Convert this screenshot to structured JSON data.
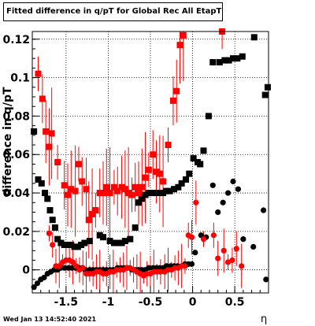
{
  "title": "Fitted difference in q/pT for Global Rec All EtapT",
  "footer": "Wed Jan 13 14:52:40 2021",
  "chart_data": {
    "type": "scatter",
    "title": "Fitted difference in q/pT for Global Rec All EtapT",
    "xlabel": "η",
    "ylabel": "difference in q/pT",
    "xlim": [
      -1.9,
      0.9
    ],
    "ylim": [
      -0.012,
      0.124
    ],
    "grid": true,
    "x_ticks": [
      -1.5,
      -1,
      -0.5,
      0,
      0.5
    ],
    "x_tick_labels": [
      "-1.5",
      "-1",
      "-0.5",
      "0",
      "0.5"
    ],
    "y_ticks": [
      0,
      0.02,
      0.04,
      0.06,
      0.08,
      0.1,
      0.12
    ],
    "y_tick_labels": [
      "0",
      "0.02",
      "0.04",
      "0.06",
      "0.08",
      "0.1",
      "0.12"
    ],
    "colors": {
      "black": "#000000",
      "red": "#ff0000"
    },
    "series": [
      {
        "marker": "square",
        "color": "#000000",
        "points": [
          [
            -1.88,
            0.072
          ],
          [
            -1.83,
            0.047
          ],
          [
            -1.79,
            0.045
          ],
          [
            -1.75,
            0.04
          ],
          [
            -1.72,
            0.037
          ],
          [
            -1.69,
            0.031
          ],
          [
            -1.66,
            0.026
          ],
          [
            -1.63,
            0.022
          ],
          [
            -1.6,
            0.016
          ],
          [
            -1.56,
            0.014
          ],
          [
            -1.52,
            0.013
          ],
          [
            -1.48,
            0.013
          ],
          [
            -1.44,
            0.013
          ],
          [
            -1.4,
            0.012
          ],
          [
            -1.36,
            0.012
          ],
          [
            -1.32,
            0.013
          ],
          [
            -1.28,
            0.014
          ],
          [
            -1.22,
            0.015
          ],
          [
            -1.1,
            0.018
          ],
          [
            -1.06,
            0.017
          ],
          [
            -0.98,
            0.015
          ],
          [
            -0.93,
            0.014
          ],
          [
            -0.88,
            0.014
          ],
          [
            -0.84,
            0.014
          ],
          [
            -0.8,
            0.015
          ],
          [
            -0.74,
            0.016
          ],
          [
            -0.68,
            0.022
          ],
          [
            -0.64,
            0.035
          ],
          [
            -0.6,
            0.037
          ],
          [
            -0.56,
            0.039
          ],
          [
            -0.52,
            0.04
          ],
          [
            -0.48,
            0.04
          ],
          [
            -0.43,
            0.04
          ],
          [
            -0.39,
            0.04
          ],
          [
            -0.35,
            0.04
          ],
          [
            -0.31,
            0.041
          ],
          [
            -0.27,
            0.041
          ],
          [
            -0.22,
            0.042
          ],
          [
            -0.17,
            0.043
          ],
          [
            -0.13,
            0.045
          ],
          [
            -0.08,
            0.047
          ],
          [
            -0.04,
            0.05
          ],
          [
            0.01,
            0.058
          ],
          [
            0.06,
            0.056
          ],
          [
            0.09,
            0.055
          ],
          [
            0.13,
            0.062
          ],
          [
            0.19,
            0.08
          ],
          [
            0.24,
            0.108
          ],
          [
            0.32,
            0.108
          ],
          [
            0.38,
            0.109
          ],
          [
            0.43,
            0.109
          ],
          [
            0.48,
            0.11
          ],
          [
            0.53,
            0.11
          ],
          [
            0.59,
            0.111
          ],
          [
            0.73,
            0.121
          ],
          [
            0.86,
            0.091
          ],
          [
            0.89,
            0.095
          ]
        ]
      },
      {
        "marker": "circle",
        "color": "#000000",
        "points": [
          [
            -1.88,
            -0.009
          ],
          [
            -1.84,
            -0.007
          ],
          [
            -1.8,
            -0.005
          ],
          [
            -1.76,
            -0.004
          ],
          [
            -1.72,
            -0.002
          ],
          [
            -1.68,
            -0.001
          ],
          [
            -1.64,
            0.0
          ],
          [
            -1.6,
            0.0
          ],
          [
            -1.56,
            0.001
          ],
          [
            -1.52,
            0.001
          ],
          [
            -1.47,
            0.001
          ],
          [
            -1.43,
            0.001
          ],
          [
            -1.39,
            0.001
          ],
          [
            -1.35,
            0.001
          ],
          [
            -1.31,
            0.001
          ],
          [
            -1.27,
            0.0
          ],
          [
            -1.22,
            0.0
          ],
          [
            -1.18,
            0.0
          ],
          [
            -1.14,
            0.0
          ],
          [
            -1.1,
            0.0
          ],
          [
            -1.06,
            0.0
          ],
          [
            -1.02,
            0.0
          ],
          [
            -0.98,
            0.0
          ],
          [
            -0.94,
            0.0
          ],
          [
            -0.89,
            0.001
          ],
          [
            -0.85,
            0.001
          ],
          [
            -0.81,
            0.001
          ],
          [
            -0.77,
            0.001
          ],
          [
            -0.72,
            0.0
          ],
          [
            -0.68,
            0.0
          ],
          [
            -0.64,
            0.0
          ],
          [
            -0.6,
            0.0
          ],
          [
            -0.56,
            0.0
          ],
          [
            -0.52,
            0.001
          ],
          [
            -0.47,
            0.001
          ],
          [
            -0.43,
            0.001
          ],
          [
            -0.39,
            0.001
          ],
          [
            -0.35,
            0.001
          ],
          [
            -0.31,
            0.002
          ],
          [
            -0.26,
            0.002
          ],
          [
            -0.22,
            0.002
          ],
          [
            -0.18,
            0.002
          ],
          [
            -0.13,
            0.002
          ],
          [
            -0.09,
            0.003
          ],
          [
            -0.05,
            0.003
          ],
          [
            -0.01,
            0.003
          ],
          [
            0.03,
            0.009
          ],
          [
            0.1,
            0.018
          ],
          [
            0.16,
            0.017
          ],
          [
            0.24,
            0.044
          ],
          [
            0.3,
            0.03
          ],
          [
            0.36,
            0.035
          ],
          [
            0.42,
            0.04
          ],
          [
            0.48,
            0.046
          ],
          [
            0.54,
            0.042
          ],
          [
            0.6,
            0.016
          ],
          [
            0.72,
            0.012
          ],
          [
            0.84,
            0.031
          ],
          [
            0.87,
            -0.005
          ]
        ]
      },
      {
        "marker": "square",
        "color": "#ff0000",
        "points": [
          [
            -1.83,
            0.102
          ],
          [
            -1.78,
            0.089
          ],
          [
            -1.74,
            0.072
          ],
          [
            -1.7,
            0.064
          ],
          [
            -1.67,
            0.071
          ],
          [
            -1.6,
            0.056
          ],
          [
            -1.52,
            0.044
          ],
          [
            -1.48,
            0.039
          ],
          [
            -1.44,
            0.042
          ],
          [
            -1.39,
            0.041
          ],
          [
            -1.35,
            0.055
          ],
          [
            -1.31,
            0.046
          ],
          [
            -1.26,
            0.042
          ],
          [
            -1.23,
            0.026
          ],
          [
            -1.19,
            0.029
          ],
          [
            -1.15,
            0.031
          ],
          [
            -1.1,
            0.04
          ],
          [
            -1.06,
            0.04
          ],
          [
            -1.02,
            0.043
          ],
          [
            -0.98,
            0.04
          ],
          [
            -0.93,
            0.043
          ],
          [
            -0.89,
            0.041
          ],
          [
            -0.84,
            0.043
          ],
          [
            -0.8,
            0.042
          ],
          [
            -0.76,
            0.04
          ],
          [
            -0.72,
            0.039
          ],
          [
            -0.68,
            0.043
          ],
          [
            -0.64,
            0.04
          ],
          [
            -0.6,
            0.043
          ],
          [
            -0.56,
            0.048
          ],
          [
            -0.52,
            0.052
          ],
          [
            -0.47,
            0.06
          ],
          [
            -0.43,
            0.051
          ],
          [
            -0.39,
            0.05
          ],
          [
            -0.35,
            0.046
          ],
          [
            -0.29,
            0.065
          ],
          [
            -0.23,
            0.088
          ],
          [
            -0.19,
            0.093
          ],
          [
            -0.15,
            0.117
          ],
          [
            -0.11,
            0.122
          ],
          [
            0.35,
            0.124
          ]
        ]
      },
      {
        "marker": "circle",
        "color": "#ff0000",
        "points": [
          [
            -1.7,
            0.019
          ],
          [
            -1.66,
            0.013
          ],
          [
            -1.62,
            0.002
          ],
          [
            -1.58,
            0.002
          ],
          [
            -1.54,
            0.004
          ],
          [
            -1.5,
            0.005
          ],
          [
            -1.46,
            0.005
          ],
          [
            -1.42,
            0.004
          ],
          [
            -1.38,
            0.002
          ],
          [
            -1.34,
            0.0
          ],
          [
            -1.3,
            0.001
          ],
          [
            -1.26,
            -0.002
          ],
          [
            -1.22,
            -0.002
          ],
          [
            -1.18,
            -0.002
          ],
          [
            -1.14,
            -0.001
          ],
          [
            -1.1,
            -0.001
          ],
          [
            -1.06,
            -0.002
          ],
          [
            -1.02,
            -0.002
          ],
          [
            -0.98,
            -0.001
          ],
          [
            -0.94,
            -0.001
          ],
          [
            -0.9,
            0.0
          ],
          [
            -0.86,
            0.0
          ],
          [
            -0.82,
            0.0
          ],
          [
            -0.78,
            0.001
          ],
          [
            -0.74,
            0.001
          ],
          [
            -0.7,
            0.0
          ],
          [
            -0.66,
            -0.001
          ],
          [
            -0.62,
            -0.002
          ],
          [
            -0.58,
            -0.003
          ],
          [
            -0.54,
            -0.002
          ],
          [
            -0.5,
            -0.002
          ],
          [
            -0.46,
            -0.001
          ],
          [
            -0.42,
            -0.001
          ],
          [
            -0.38,
            -0.001
          ],
          [
            -0.33,
            -0.001
          ],
          [
            -0.29,
            0.0
          ],
          [
            -0.25,
            0.0
          ],
          [
            -0.21,
            0.001
          ],
          [
            -0.17,
            0.001
          ],
          [
            -0.13,
            0.002
          ],
          [
            -0.09,
            0.002
          ],
          [
            -0.05,
            0.018
          ],
          [
            -0.01,
            0.017
          ],
          [
            0.04,
            0.035
          ],
          [
            0.13,
            0.016
          ],
          [
            0.25,
            0.018
          ],
          [
            0.3,
            0.006
          ],
          [
            0.37,
            0.01
          ],
          [
            0.42,
            0.004
          ],
          [
            0.47,
            0.005
          ],
          [
            0.52,
            0.011
          ],
          [
            0.58,
            0.002
          ]
        ]
      }
    ]
  }
}
